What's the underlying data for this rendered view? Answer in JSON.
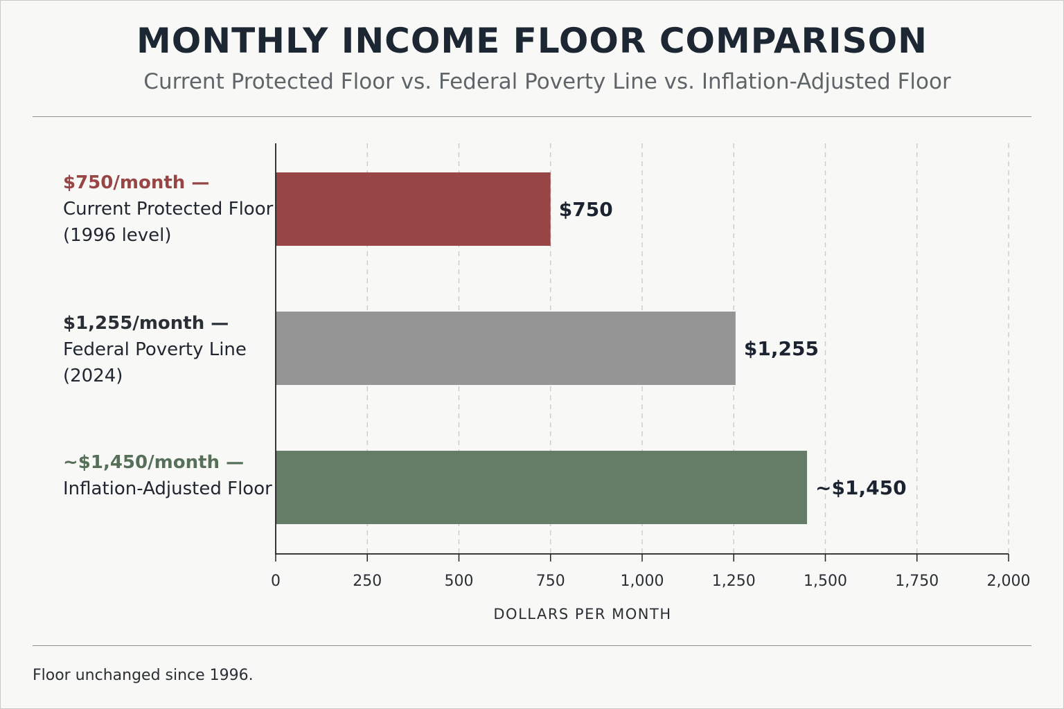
{
  "title": "MONTHLY INCOME FLOOR COMPARISON",
  "subtitle": "Current Protected Floor vs. Federal Poverty Line vs. Inflation-Adjusted Floor",
  "footnote": "Floor unchanged since 1996.",
  "colors": {
    "current": "#984545",
    "poverty": "#959595",
    "inflation": "#657d66",
    "axis": "#222222",
    "grid": "#c8c8c4"
  },
  "chart_data": {
    "type": "bar",
    "orientation": "horizontal",
    "xlabel": "DOLLARS PER MONTH",
    "xlim": [
      0,
      2000
    ],
    "xticks": [
      0,
      250,
      500,
      750,
      1000,
      1250,
      1500,
      1750,
      2000
    ],
    "xtick_labels": [
      "0",
      "250",
      "500",
      "750",
      "1,000",
      "1,250",
      "1,500",
      "1,750",
      "2,000"
    ],
    "grid": true,
    "bars": [
      {
        "value": 750,
        "value_label": "$750",
        "label_value": "$750/month —",
        "label_desc": "Current Protected Floor\n(1996 level)",
        "color": "#984545",
        "label_value_color": "#984545"
      },
      {
        "value": 1255,
        "value_label": "$1,255",
        "label_value": "$1,255/month —",
        "label_desc": "Federal Poverty Line\n(2024)",
        "color": "#959595",
        "label_value_color": "#2a2f35"
      },
      {
        "value": 1450,
        "value_label": "~$1,450",
        "label_value": "~$1,450/month —",
        "label_desc": "Inflation-Adjusted Floor",
        "color": "#657d66",
        "label_value_color": "#566f58"
      }
    ]
  }
}
